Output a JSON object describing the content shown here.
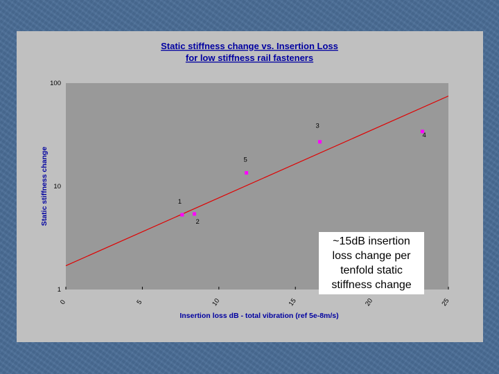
{
  "chart_data": {
    "type": "scatter",
    "title_lines": [
      "Static stiffness change vs. Insertion Loss",
      "for low stiffness rail fasteners"
    ],
    "xlabel": "Insertion loss dB - total vibration (ref 5e-8m/s)",
    "ylabel": "Static stiffness change",
    "xlim": [
      0,
      25
    ],
    "ylim": [
      1,
      100
    ],
    "yscale": "log",
    "x_ticks": [
      "0",
      "5",
      "10",
      "15",
      "20",
      "25"
    ],
    "y_ticks": [
      "1",
      "10",
      "100"
    ],
    "grid": false,
    "colors": {
      "points": "#ff00ff",
      "trend_line": "#e00000",
      "plot_area": "#999999",
      "panel": "#c0c0c0",
      "title": "#0000a0"
    },
    "points": [
      {
        "label": "1",
        "x": 7.6,
        "y": 5.3
      },
      {
        "label": "2",
        "x": 8.4,
        "y": 5.4
      },
      {
        "label": "3",
        "x": 16.6,
        "y": 27
      },
      {
        "label": "4",
        "x": 23.3,
        "y": 34
      },
      {
        "label": "5",
        "x": 11.8,
        "y": 13.5
      }
    ],
    "trend_line": {
      "x": [
        0,
        25
      ],
      "y": [
        1.7,
        75
      ]
    },
    "annotation": "~15dB insertion loss change per tenfold static stiffness change"
  }
}
